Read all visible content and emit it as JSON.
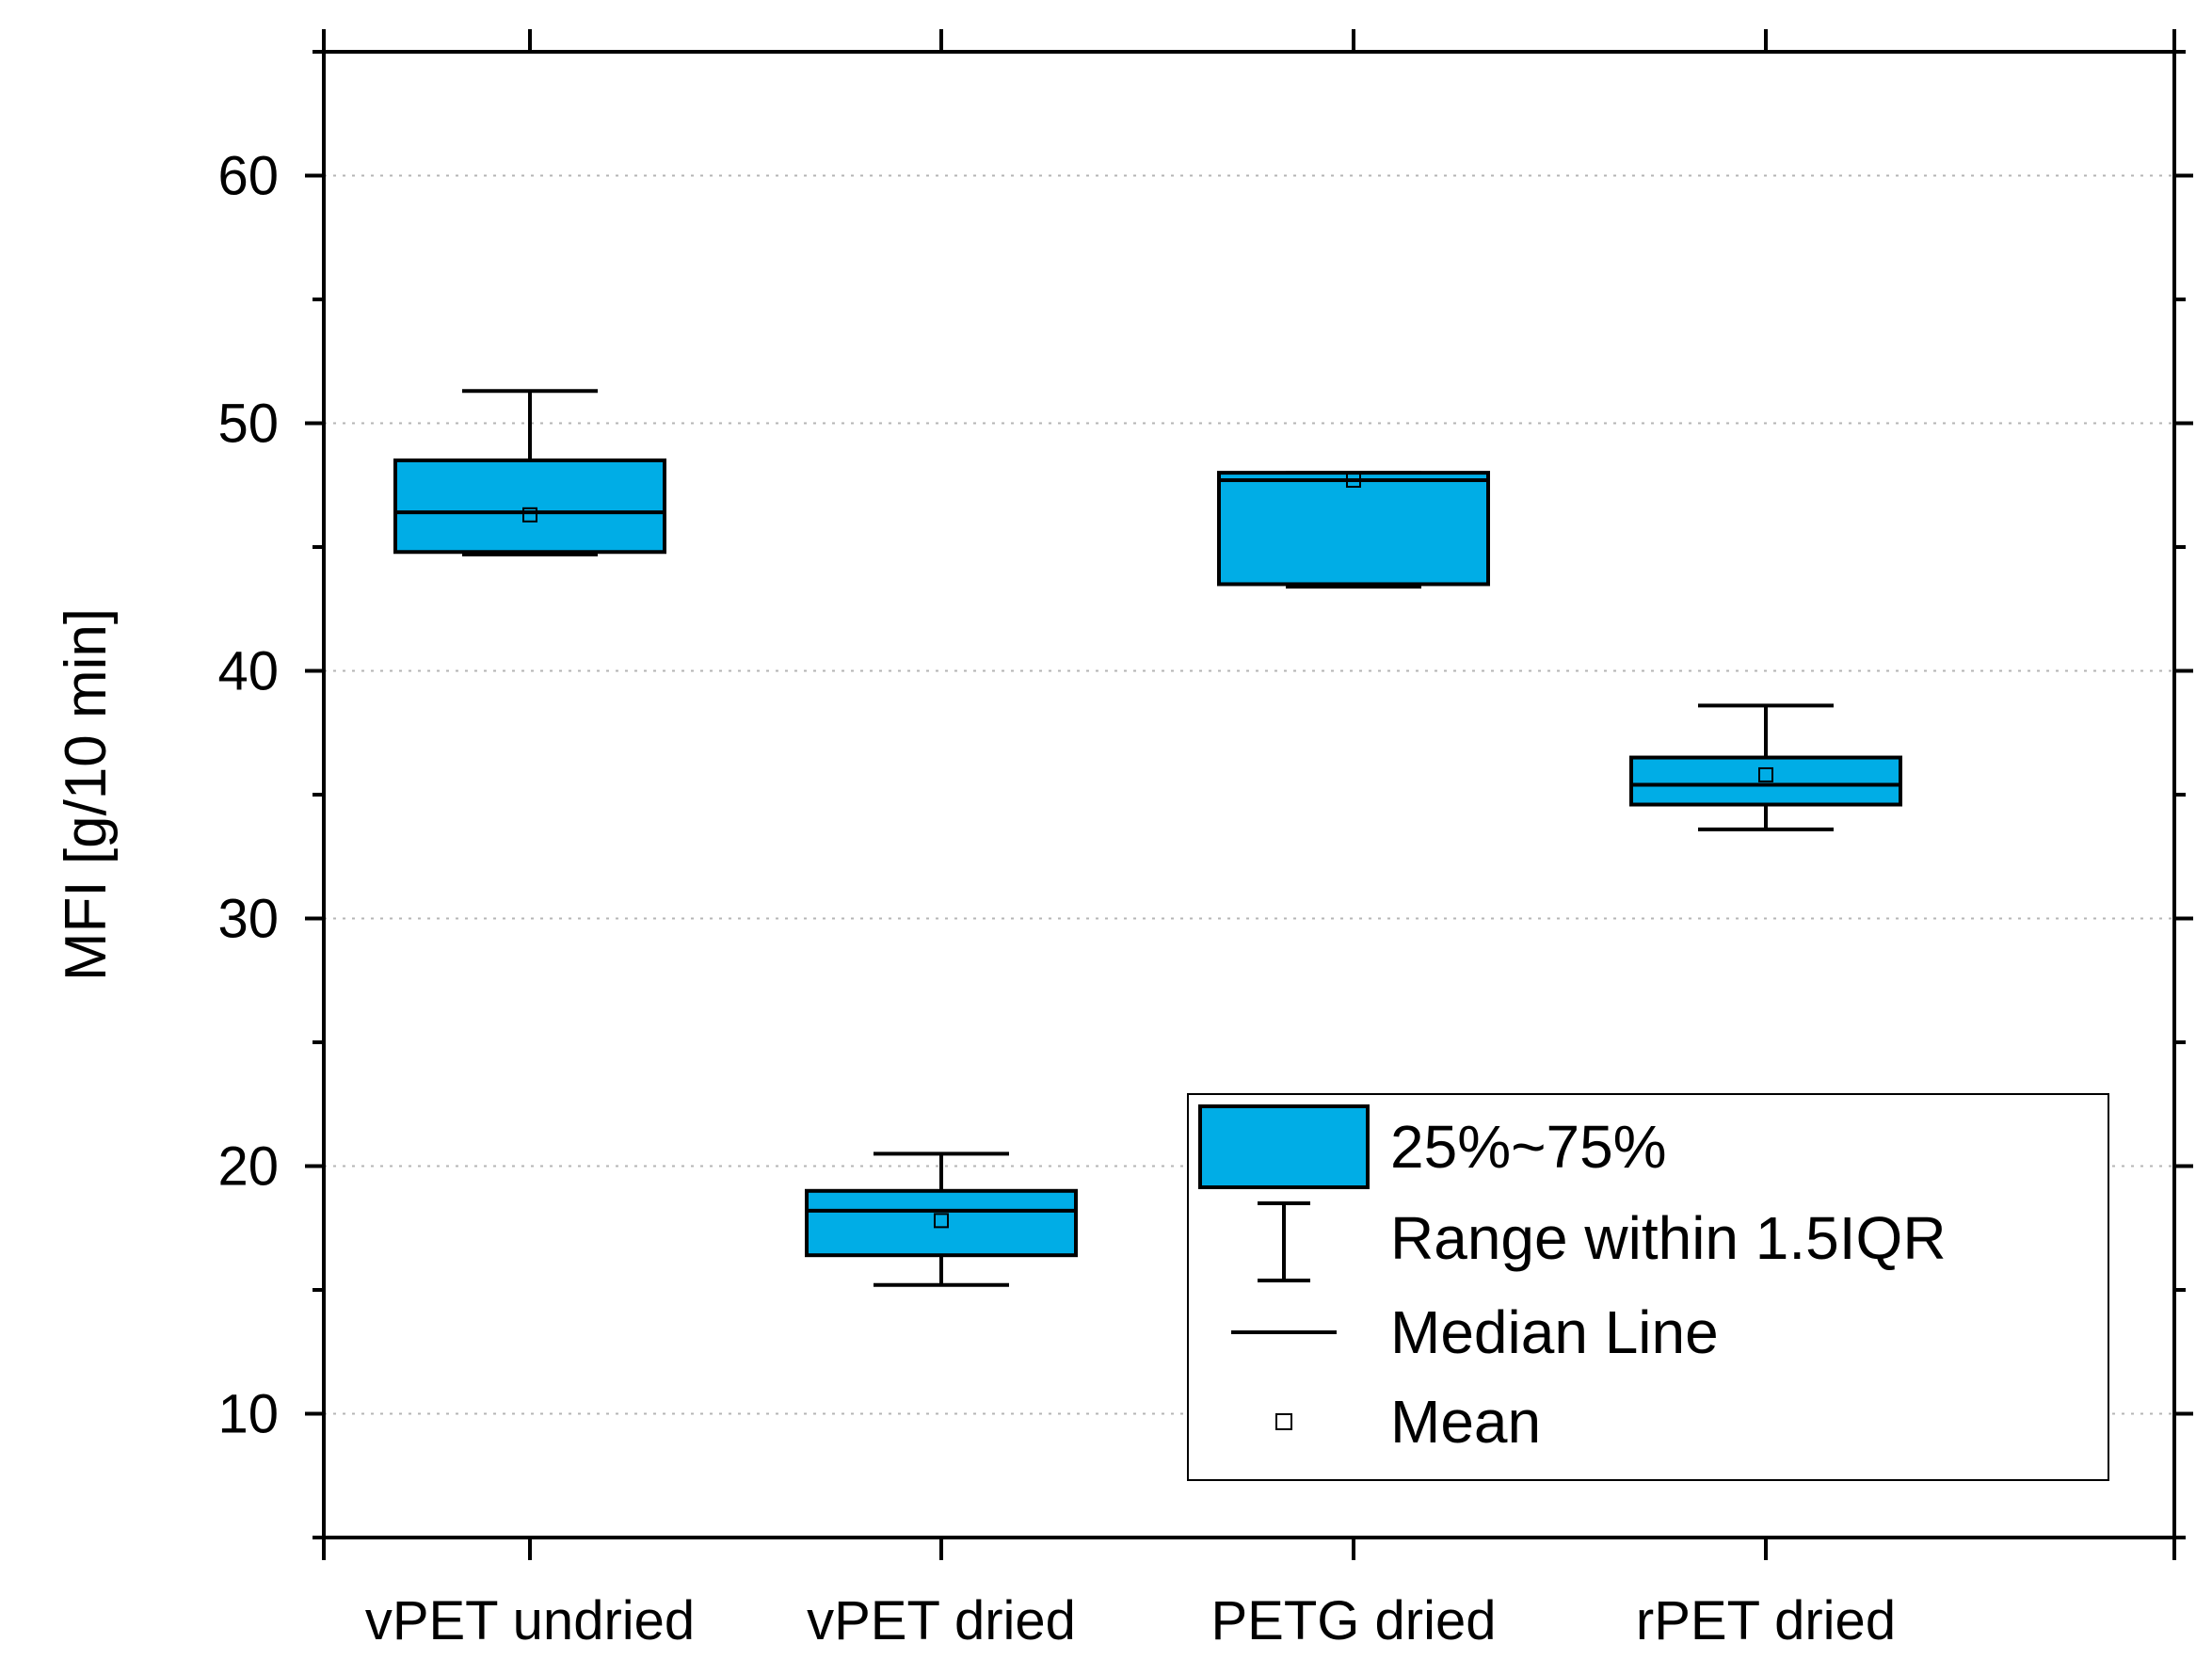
{
  "chart_data": {
    "type": "box",
    "title": "",
    "ylabel": "MFI [g/10 min]",
    "xlabel": "",
    "ylim": [
      5,
      65
    ],
    "yticks": [
      10,
      20,
      30,
      40,
      50,
      60
    ],
    "grid": "horizontal dotted at major ticks",
    "box_color": "#00ade6",
    "categories": [
      "vPET undried",
      "vPET dried",
      "PETG dried",
      "rPET dried"
    ],
    "boxes": [
      {
        "category": "vPET undried",
        "whisker_low": 44.7,
        "q1": 44.8,
        "median": 46.4,
        "q3": 48.5,
        "whisker_high": 51.3,
        "mean": 46.3
      },
      {
        "category": "vPET dried",
        "whisker_low": 15.2,
        "q1": 16.4,
        "median": 18.2,
        "q3": 19.0,
        "whisker_high": 20.5,
        "mean": 17.8
      },
      {
        "category": "PETG dried",
        "whisker_low": 43.4,
        "q1": 43.5,
        "median": 47.7,
        "q3": 48.0,
        "whisker_high": 48.0,
        "mean": 47.7
      },
      {
        "category": "rPET dried",
        "whisker_low": 33.6,
        "q1": 34.6,
        "median": 35.4,
        "q3": 36.5,
        "whisker_high": 38.6,
        "mean": 35.8
      }
    ],
    "legend": {
      "position": "bottom-right",
      "items": [
        {
          "symbol": "box",
          "label": "25%~75%"
        },
        {
          "symbol": "whisker",
          "label": "Range within 1.5IQR"
        },
        {
          "symbol": "line",
          "label": "Median Line"
        },
        {
          "symbol": "square",
          "label": "Mean"
        }
      ]
    }
  }
}
